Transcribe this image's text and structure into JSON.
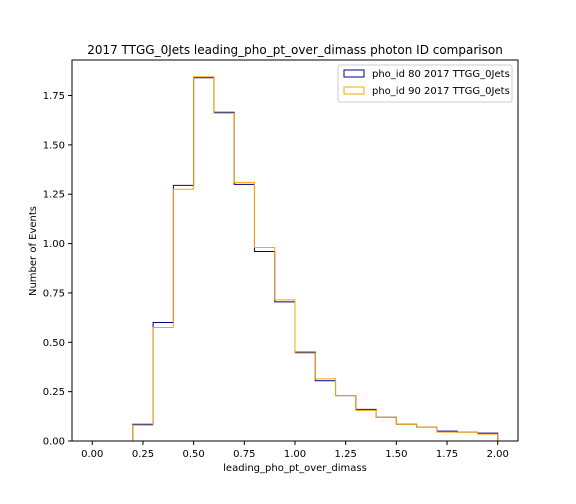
{
  "chart_data": {
    "type": "step-histogram",
    "title": "2017 TTGG_0Jets leading_pho_pt_over_dimass photon ID comparison",
    "xlabel": "leading_pho_pt_over_dimass",
    "ylabel": "Number of Events",
    "xlim": [
      -0.1,
      2.1
    ],
    "ylim": [
      0,
      1.93
    ],
    "xticks": [
      "0.00",
      "0.25",
      "0.50",
      "0.75",
      "1.00",
      "1.25",
      "1.50",
      "1.75",
      "2.00"
    ],
    "yticks": [
      "0.00",
      "0.25",
      "0.50",
      "0.75",
      "1.00",
      "1.25",
      "1.50",
      "1.75"
    ],
    "bin_edges": [
      0.0,
      0.1,
      0.2,
      0.3,
      0.4,
      0.5,
      0.6,
      0.7,
      0.8,
      0.9,
      1.0,
      1.1,
      1.2,
      1.3,
      1.4,
      1.5,
      1.6,
      1.7,
      1.8,
      1.9,
      2.0
    ],
    "legend_position": "top-right",
    "grid": false,
    "series": [
      {
        "name": "pho_id 80 2017 TTGG_0Jets",
        "color": "#00008b",
        "values": [
          0,
          0,
          0.085,
          0.6,
          1.295,
          1.84,
          1.665,
          1.3,
          0.96,
          0.705,
          0.45,
          0.305,
          0.23,
          0.16,
          0.12,
          0.085,
          0.07,
          0.05,
          0.045,
          0.04
        ]
      },
      {
        "name": "pho_id 90 2017 TTGG_0Jets",
        "color": "#ffa500",
        "values": [
          0,
          0,
          0.08,
          0.575,
          1.275,
          1.845,
          1.66,
          1.31,
          0.98,
          0.715,
          0.445,
          0.315,
          0.23,
          0.155,
          0.12,
          0.085,
          0.07,
          0.045,
          0.045,
          0.035
        ]
      }
    ]
  }
}
